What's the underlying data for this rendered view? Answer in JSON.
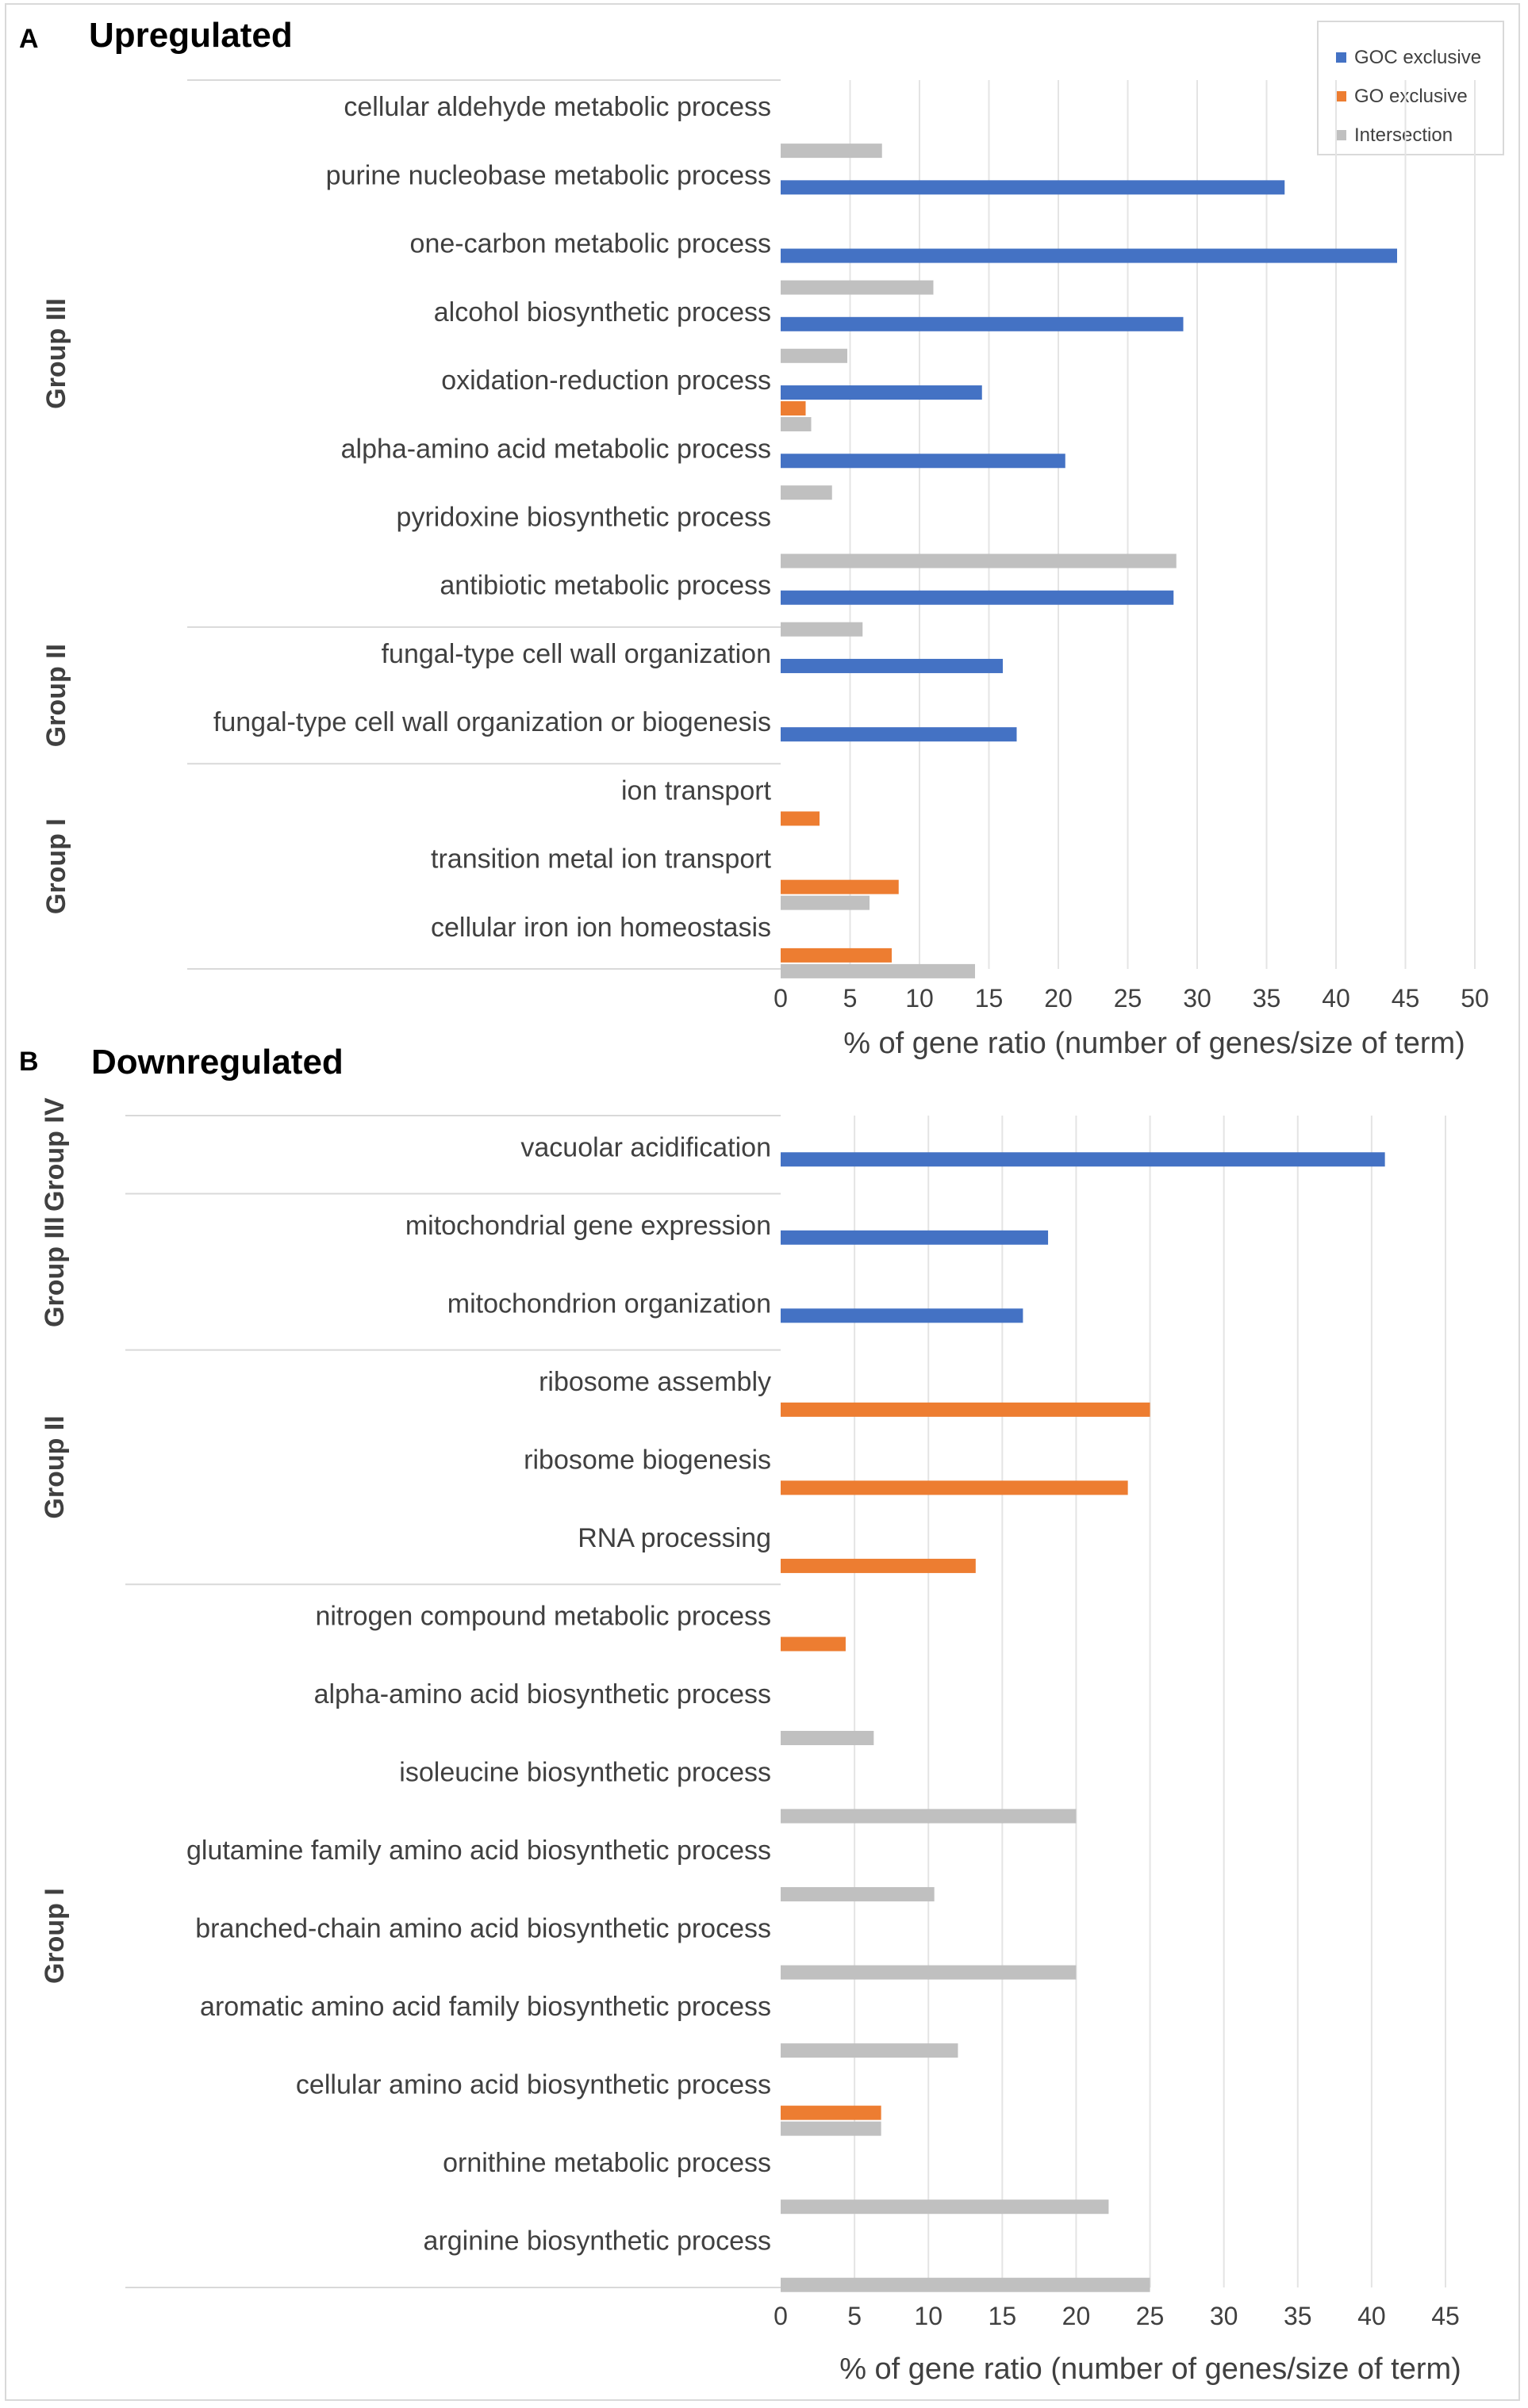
{
  "colors": {
    "goc": "#4472c4",
    "go": "#ed7d31",
    "intersection": "#c0c0c0",
    "grid": "#e4e4e4",
    "text": "#404040"
  },
  "legend": {
    "goc": "GOC exclusive",
    "go": "GO exclusive",
    "intersection": "Intersection"
  },
  "chart_data": [
    {
      "panel": "A",
      "title": "Upregulated",
      "type": "bar",
      "orientation": "horizontal",
      "xlabel": "% of gene ratio (number of genes/size of term)",
      "xlim": [
        0,
        50
      ],
      "xticks": [
        0,
        5,
        10,
        15,
        20,
        25,
        30,
        35,
        40,
        45,
        50
      ],
      "categories": [
        "cellular aldehyde metabolic process",
        "purine nucleobase metabolic process",
        "one-carbon metabolic process",
        "alcohol biosynthetic process",
        "oxidation-reduction process",
        "alpha-amino acid metabolic process",
        "pyridoxine biosynthetic process",
        "antibiotic metabolic process",
        "fungal-type cell wall organization",
        "fungal-type cell wall organization or biogenesis",
        "ion transport",
        "transition metal ion transport",
        "cellular iron ion homeostasis"
      ],
      "series": [
        {
          "name": "GOC exclusive",
          "values": [
            null,
            36.3,
            44.4,
            29.0,
            14.5,
            20.5,
            null,
            28.3,
            16.0,
            17.0,
            null,
            null,
            null
          ]
        },
        {
          "name": "GO exclusive",
          "values": [
            null,
            null,
            null,
            null,
            1.8,
            null,
            null,
            null,
            null,
            null,
            2.8,
            8.5,
            8.0
          ]
        },
        {
          "name": "Intersection",
          "values": [
            7.3,
            null,
            11.0,
            4.8,
            2.2,
            3.7,
            28.5,
            5.9,
            null,
            null,
            null,
            6.4,
            14.0
          ]
        }
      ],
      "groups": [
        {
          "label": "Group III",
          "count": 8
        },
        {
          "label": "Group II",
          "count": 2
        },
        {
          "label": "Group I",
          "count": 3
        }
      ]
    },
    {
      "panel": "B",
      "title": "Downregulated",
      "type": "bar",
      "orientation": "horizontal",
      "xlabel": "% of gene ratio (number of genes/size of term)",
      "xlim": [
        0,
        45
      ],
      "xticks": [
        0,
        5,
        10,
        15,
        20,
        25,
        30,
        35,
        40,
        45
      ],
      "categories": [
        "vacuolar acidification",
        "mitochondrial gene expression",
        "mitochondrion organization",
        "ribosome assembly",
        "ribosome biogenesis",
        "RNA processing",
        "nitrogen compound metabolic process",
        "alpha-amino acid biosynthetic process",
        "isoleucine biosynthetic process",
        "glutamine family amino acid biosynthetic process",
        "branched-chain amino acid biosynthetic process",
        "aromatic amino acid family biosynthetic process",
        "cellular amino acid biosynthetic process",
        "ornithine metabolic process",
        "arginine biosynthetic process"
      ],
      "series": [
        {
          "name": "GOC exclusive",
          "values": [
            40.9,
            18.1,
            16.4,
            null,
            null,
            null,
            null,
            null,
            null,
            null,
            null,
            null,
            null,
            null,
            null
          ]
        },
        {
          "name": "GO exclusive",
          "values": [
            null,
            null,
            null,
            25.0,
            23.5,
            13.2,
            4.4,
            null,
            null,
            null,
            null,
            null,
            6.8,
            null,
            null
          ]
        },
        {
          "name": "Intersection",
          "values": [
            null,
            null,
            null,
            null,
            null,
            null,
            null,
            6.3,
            20.0,
            10.4,
            20.0,
            12.0,
            6.8,
            22.2,
            25.0
          ]
        }
      ],
      "groups": [
        {
          "label": "Group IV",
          "count": 1
        },
        {
          "label": "Group III",
          "count": 2
        },
        {
          "label": "Group II",
          "count": 3
        },
        {
          "label": "Group I",
          "count": 9
        }
      ]
    }
  ]
}
